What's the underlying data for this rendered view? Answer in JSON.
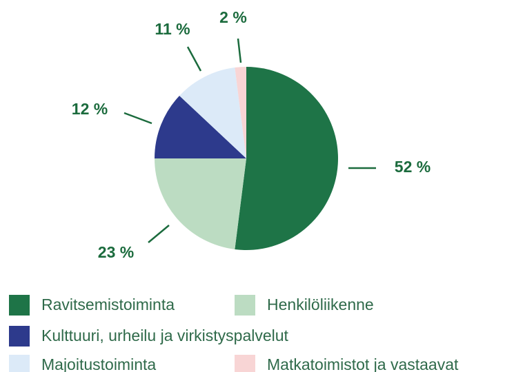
{
  "chart_data": {
    "type": "pie",
    "categories": [
      "Ravitsemistoiminta",
      "Henkilöliikenne",
      "Kulttuuri, urheilu ja virkistyspalvelut",
      "Majoitustoiminta",
      "Matkatoimistot ja vastaavat"
    ],
    "values": [
      52,
      23,
      12,
      11,
      2
    ],
    "value_labels": [
      "52 %",
      "23 %",
      "12 %",
      "11 %",
      "2 %"
    ],
    "colors": [
      "#1e7447",
      "#bcdcc2",
      "#2d3a8c",
      "#dceaf8",
      "#f8d5d5"
    ]
  }
}
